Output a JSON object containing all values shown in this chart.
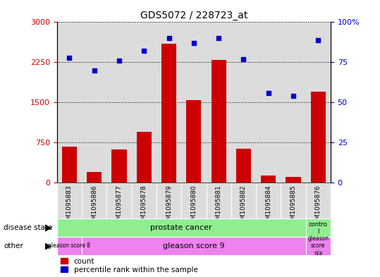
{
  "title": "GDS5072 / 228723_at",
  "samples": [
    "GSM1095883",
    "GSM1095886",
    "GSM1095877",
    "GSM1095878",
    "GSM1095879",
    "GSM1095880",
    "GSM1095881",
    "GSM1095882",
    "GSM1095884",
    "GSM1095885",
    "GSM1095876"
  ],
  "counts": [
    680,
    200,
    620,
    950,
    2600,
    1550,
    2300,
    640,
    140,
    110,
    1700
  ],
  "percentiles": [
    78,
    70,
    76,
    82,
    90,
    87,
    90,
    77,
    56,
    54,
    89
  ],
  "ylim_left": [
    0,
    3000
  ],
  "ylim_right": [
    0,
    100
  ],
  "yticks_left": [
    0,
    750,
    1500,
    2250,
    3000
  ],
  "yticks_right": [
    0,
    25,
    50,
    75,
    100
  ],
  "bar_color": "#cc0000",
  "scatter_color": "#0000cc",
  "bg_color": "#dcdcdc",
  "disease_green": "#90ee90",
  "other_magenta": "#ee82ee"
}
